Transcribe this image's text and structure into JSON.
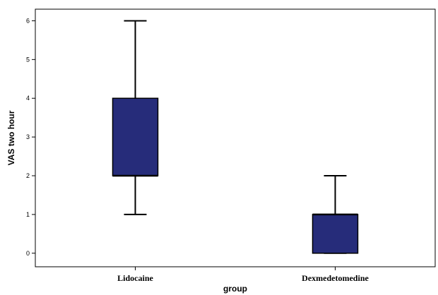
{
  "chart_data": {
    "type": "boxplot",
    "xlabel": "group",
    "ylabel": "VAS two hour",
    "ylim": [
      -0.35,
      6.3
    ],
    "yticks": [
      0,
      1,
      2,
      3,
      4,
      5,
      6
    ],
    "box_color": "#262c7a",
    "grid": false,
    "categories": [
      "Lidocaine",
      "Dexmedetomedine"
    ],
    "boxes": [
      {
        "category": "Lidocaine",
        "min": 1,
        "q1": 2,
        "median": 2,
        "q3": 4,
        "max": 6
      },
      {
        "category": "Dexmedetomedine",
        "min": 0,
        "q1": 0,
        "median": 1,
        "q3": 1,
        "max": 2
      }
    ]
  }
}
